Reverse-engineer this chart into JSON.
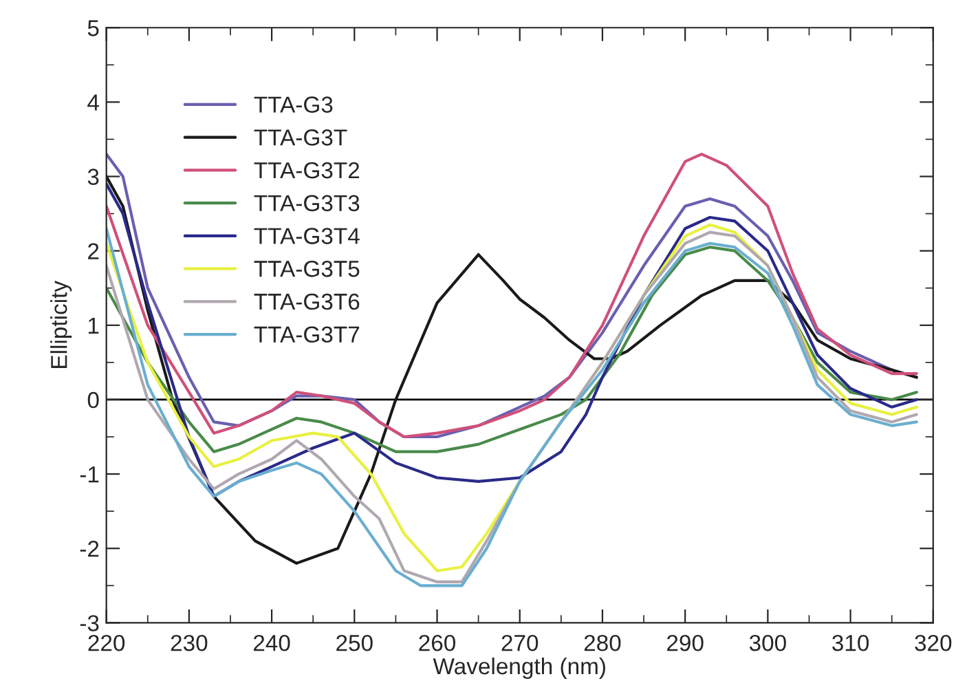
{
  "chart_data": {
    "type": "line",
    "xlabel": "Wavelength (nm)",
    "ylabel": "Ellipticity",
    "xlim": [
      220,
      320
    ],
    "xticks": [
      220,
      230,
      240,
      250,
      260,
      270,
      280,
      290,
      300,
      310,
      320
    ],
    "ylim": [
      -3,
      5
    ],
    "yticks": [
      -3,
      -2,
      -1,
      0,
      1,
      2,
      3,
      4,
      5
    ],
    "grid": false,
    "legend": "top left",
    "marker": "none",
    "line_style": "solid",
    "ref_lines": [
      {
        "axis": "y",
        "value": 0,
        "color": "#000000"
      }
    ],
    "series": [
      {
        "name": "TTA-G3",
        "color": "#6a5fb0",
        "x": [
          220,
          222,
          225,
          230,
          233,
          236,
          240,
          243,
          246,
          250,
          253,
          256,
          260,
          265,
          270,
          273,
          276,
          280,
          285,
          290,
          293,
          296,
          300,
          303,
          306,
          310,
          315,
          318
        ],
        "values": [
          3.3,
          3.0,
          1.5,
          0.3,
          -0.3,
          -0.35,
          -0.15,
          0.05,
          0.05,
          0.0,
          -0.3,
          -0.5,
          -0.5,
          -0.35,
          -0.1,
          0.05,
          0.3,
          0.9,
          1.8,
          2.6,
          2.7,
          2.6,
          2.2,
          1.6,
          0.9,
          0.65,
          0.4,
          0.3
        ]
      },
      {
        "name": "TTA-G3T",
        "color": "#1a1a1a",
        "x": [
          220,
          222,
          225,
          228,
          233,
          238,
          243,
          248,
          252,
          255,
          260,
          265,
          268,
          270,
          273,
          276,
          279,
          281,
          283,
          287,
          292,
          296,
          300,
          303,
          306,
          310,
          315,
          318
        ],
        "values": [
          3.0,
          2.6,
          1.2,
          0.0,
          -1.3,
          -1.9,
          -2.2,
          -2.0,
          -1.0,
          0.0,
          1.3,
          1.95,
          1.6,
          1.35,
          1.1,
          0.8,
          0.55,
          0.55,
          0.65,
          1.0,
          1.4,
          1.6,
          1.6,
          1.3,
          0.8,
          0.55,
          0.4,
          0.3
        ]
      },
      {
        "name": "TTA-G3T2",
        "color": "#d0507a",
        "x": [
          220,
          225,
          230,
          233,
          236,
          240,
          243,
          246,
          250,
          253,
          256,
          260,
          265,
          270,
          273,
          276,
          280,
          285,
          290,
          292,
          295,
          300,
          303,
          306,
          310,
          315,
          318
        ],
        "values": [
          2.6,
          1.0,
          0.1,
          -0.45,
          -0.35,
          -0.15,
          0.1,
          0.05,
          -0.05,
          -0.3,
          -0.5,
          -0.45,
          -0.35,
          -0.15,
          0.0,
          0.3,
          1.0,
          2.2,
          3.2,
          3.3,
          3.15,
          2.6,
          1.7,
          0.95,
          0.6,
          0.35,
          0.35
        ]
      },
      {
        "name": "TTA-G3T3",
        "color": "#4a8a4a",
        "x": [
          220,
          225,
          230,
          233,
          236,
          240,
          243,
          246,
          250,
          255,
          260,
          265,
          270,
          275,
          278,
          282,
          286,
          290,
          293,
          296,
          300,
          303,
          306,
          310,
          315,
          318
        ],
        "values": [
          1.5,
          0.5,
          -0.3,
          -0.7,
          -0.6,
          -0.4,
          -0.25,
          -0.3,
          -0.45,
          -0.7,
          -0.7,
          -0.6,
          -0.4,
          -0.2,
          0.0,
          0.6,
          1.4,
          1.95,
          2.05,
          2.0,
          1.6,
          1.1,
          0.5,
          0.1,
          0.0,
          0.1
        ]
      },
      {
        "name": "TTA-G3T4",
        "color": "#2a2a8a",
        "x": [
          220,
          222,
          225,
          230,
          233,
          236,
          240,
          245,
          250,
          255,
          260,
          265,
          270,
          275,
          278,
          280,
          285,
          290,
          293,
          296,
          300,
          303,
          306,
          310,
          315,
          318
        ],
        "values": [
          2.9,
          2.5,
          1.3,
          -0.5,
          -1.3,
          -1.1,
          -0.9,
          -0.65,
          -0.45,
          -0.85,
          -1.05,
          -1.1,
          -1.05,
          -0.7,
          -0.2,
          0.3,
          1.4,
          2.3,
          2.45,
          2.4,
          2.0,
          1.3,
          0.6,
          0.15,
          -0.1,
          0.0
        ]
      },
      {
        "name": "TTA-G3T5",
        "color": "#e8f040",
        "x": [
          220,
          225,
          230,
          233,
          236,
          240,
          245,
          248,
          252,
          256,
          260,
          263,
          266,
          270,
          275,
          280,
          285,
          290,
          293,
          296,
          300,
          303,
          306,
          310,
          315,
          318
        ],
        "values": [
          2.1,
          0.5,
          -0.5,
          -0.9,
          -0.8,
          -0.55,
          -0.45,
          -0.5,
          -1.0,
          -1.8,
          -2.3,
          -2.25,
          -1.8,
          -1.1,
          -0.3,
          0.5,
          1.4,
          2.2,
          2.35,
          2.25,
          1.8,
          1.1,
          0.4,
          -0.05,
          -0.2,
          -0.1
        ]
      },
      {
        "name": "TTA-G3T6",
        "color": "#b0a8b0",
        "x": [
          220,
          225,
          230,
          233,
          236,
          240,
          243,
          246,
          250,
          253,
          256,
          260,
          263,
          266,
          270,
          275,
          280,
          285,
          290,
          293,
          296,
          300,
          303,
          306,
          310,
          315,
          318
        ],
        "values": [
          1.8,
          0.0,
          -0.8,
          -1.2,
          -1.0,
          -0.8,
          -0.55,
          -0.8,
          -1.3,
          -1.6,
          -2.3,
          -2.45,
          -2.45,
          -1.9,
          -1.1,
          -0.3,
          0.5,
          1.4,
          2.1,
          2.25,
          2.2,
          1.8,
          1.1,
          0.3,
          -0.15,
          -0.3,
          -0.2
        ]
      },
      {
        "name": "TTA-G3T7",
        "color": "#6aaed0",
        "x": [
          220,
          225,
          230,
          233,
          236,
          240,
          243,
          246,
          250,
          255,
          258,
          263,
          266,
          270,
          275,
          280,
          285,
          290,
          293,
          296,
          300,
          303,
          306,
          310,
          315,
          318
        ],
        "values": [
          2.3,
          0.2,
          -0.9,
          -1.3,
          -1.1,
          -0.95,
          -0.85,
          -1.0,
          -1.5,
          -2.3,
          -2.5,
          -2.5,
          -2.0,
          -1.1,
          -0.3,
          0.4,
          1.3,
          2.0,
          2.1,
          2.05,
          1.7,
          1.0,
          0.2,
          -0.2,
          -0.35,
          -0.3
        ]
      }
    ]
  }
}
